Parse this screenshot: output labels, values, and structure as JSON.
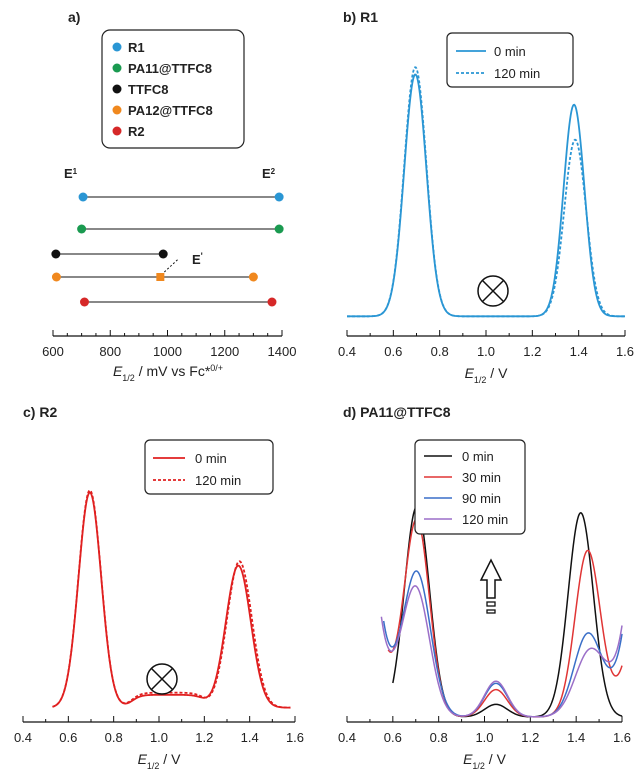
{
  "chart_data": [
    {
      "panel": "a",
      "type": "diagram",
      "panel_label": "a)",
      "legend": [
        {
          "name": "R1",
          "color": "#2a96d4"
        },
        {
          "name": "PA11@TTFC8",
          "color": "#1a9a50"
        },
        {
          "name": "TTFC8",
          "color": "#111111"
        },
        {
          "name": "PA12@TTFC8",
          "color": "#f0881e"
        },
        {
          "name": "R2",
          "color": "#d62828"
        }
      ],
      "labels": {
        "e1": "E",
        "e1_sup": "1",
        "e2": "E",
        "e2_sup": "2",
        "eprime": "E",
        "eprime_sup": "'"
      },
      "xlabel": {
        "sym": "E",
        "sub": "1/2",
        "rest": " / mV vs Fc*",
        "sup": "0/+"
      },
      "xlim": [
        600,
        1400
      ],
      "xticks": [
        600,
        800,
        1000,
        1200,
        1400
      ],
      "rows": [
        {
          "name": "R1",
          "color": "#2a96d4",
          "e1": 705,
          "e2": 1390
        },
        {
          "name": "PA11@TTFC8",
          "color": "#1a9a50",
          "e1": 700,
          "e2": 1390
        },
        {
          "name": "TTFC8",
          "color": "#111111",
          "e1": 610,
          "e2": 985
        },
        {
          "name": "PA12@TTFC8",
          "color": "#f0881e",
          "e1": 612,
          "e2": 1300,
          "emid": 975
        },
        {
          "name": "R2",
          "color": "#d62828",
          "e1": 710,
          "e2": 1365
        }
      ]
    },
    {
      "panel": "b",
      "type": "line",
      "panel_label": "b) R1",
      "xlim": [
        0.4,
        1.6
      ],
      "xticks": [
        "0.4",
        "0.6",
        "0.8",
        "1.0",
        "1.2",
        "1.4",
        "1.6"
      ],
      "xlabel": {
        "sym": "E",
        "sub": "1/2",
        "rest": " / V"
      },
      "color": "#2a96d4",
      "series": [
        {
          "name": "0 min",
          "style": "solid",
          "baseline": 0.04,
          "peaks": [
            [
              0.695,
              1.0,
              0.048
            ],
            [
              1.38,
              0.875,
              0.045
            ]
          ],
          "x_range": [
            0.4,
            1.6
          ]
        },
        {
          "name": "120 min",
          "style": "dashed",
          "baseline": 0.04,
          "peaks": [
            [
              0.695,
              1.03,
              0.048
            ],
            [
              1.385,
              0.73,
              0.047
            ]
          ],
          "x_range": [
            0.4,
            1.6
          ]
        }
      ],
      "ylim": [
        0,
        1.05
      ],
      "annotation": "closed-circle-cross"
    },
    {
      "panel": "c",
      "type": "line",
      "panel_label": "c) R2",
      "xlim": [
        0.4,
        1.6
      ],
      "xticks": [
        "0.4",
        "0.6",
        "0.8",
        "1.0",
        "1.2",
        "1.4",
        "1.6"
      ],
      "xlabel": {
        "sym": "E",
        "sub": "1/2",
        "rest": " / V"
      },
      "color": "#e02020",
      "series": [
        {
          "name": "0 min",
          "style": "solid",
          "baseline": 0.02,
          "plateau": 0.06,
          "peaks": [
            [
              0.695,
              1.0,
              0.05
            ],
            [
              1.35,
              0.66,
              0.055
            ]
          ],
          "x_range": [
            0.53,
            1.58
          ]
        },
        {
          "name": "120 min",
          "style": "dashed",
          "baseline": 0.02,
          "plateau": 0.07,
          "peaks": [
            [
              0.695,
              1.01,
              0.05
            ],
            [
              1.355,
              0.68,
              0.055
            ]
          ],
          "x_range": [
            0.53,
            1.58
          ]
        }
      ],
      "ylim": [
        0,
        1.05
      ],
      "annotation": "closed-circle-cross"
    },
    {
      "panel": "d",
      "type": "line",
      "panel_label": "d) PA11@TTFC8",
      "xlim": [
        0.4,
        1.6
      ],
      "xticks": [
        "0.4",
        "0.6",
        "0.8",
        "1.0",
        "1.2",
        "1.4",
        "1.6"
      ],
      "xlabel": {
        "sym": "E",
        "sub": "1/2",
        "rest": " / V"
      },
      "series": [
        {
          "name": "0 min",
          "color": "#111111",
          "baseline": 0.0,
          "start": 0.0,
          "peaks": [
            [
              0.705,
              1.0,
              0.055
            ],
            [
              1.42,
              0.97,
              0.055
            ],
            [
              1.05,
              0.06,
              0.05
            ]
          ],
          "x_range": [
            0.6,
            1.6
          ]
        },
        {
          "name": "30 min",
          "color": "#e03535",
          "baseline": 0.0,
          "start": 0.25,
          "peaks": [
            [
              0.705,
              0.92,
              0.055
            ],
            [
              1.45,
              0.78,
              0.055
            ],
            [
              1.05,
              0.13,
              0.05
            ]
          ],
          "x_range": [
            0.58,
            1.6
          ]
        },
        {
          "name": "90 min",
          "color": "#3a6fc8",
          "baseline": 0.0,
          "start": 0.42,
          "peaks": [
            [
              0.705,
              0.67,
              0.06
            ],
            [
              1.45,
              0.38,
              0.06
            ],
            [
              1.05,
              0.16,
              0.05
            ]
          ],
          "x_range": [
            0.56,
            1.6
          ]
        },
        {
          "name": "120 min",
          "color": "#9b6fc8",
          "baseline": 0.0,
          "start": 0.45,
          "peaks": [
            [
              0.7,
              0.6,
              0.06
            ],
            [
              1.46,
              0.3,
              0.065
            ],
            [
              1.05,
              0.17,
              0.05
            ]
          ],
          "x_range": [
            0.55,
            1.6
          ]
        }
      ],
      "ylim": [
        0,
        1.05
      ],
      "annotation": "up-arrow"
    }
  ]
}
